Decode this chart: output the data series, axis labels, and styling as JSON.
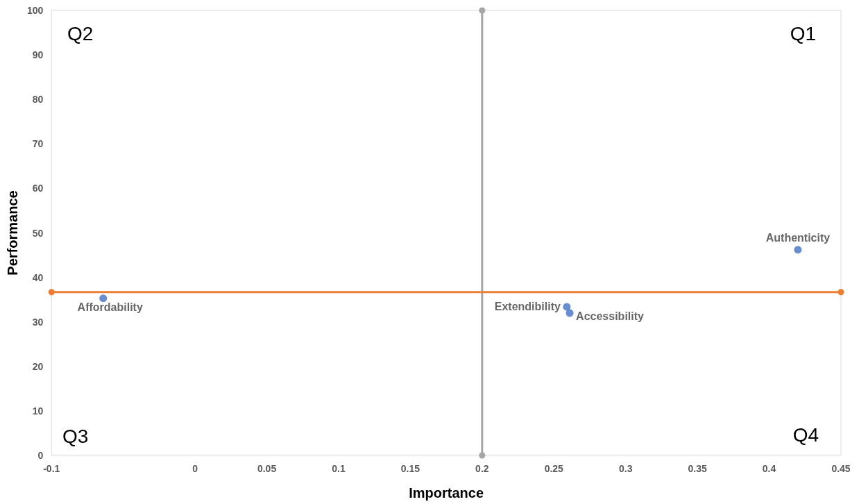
{
  "chart_data": {
    "type": "scatter",
    "xlabel": "Importance",
    "ylabel": "Performance",
    "x": [
      -0.064,
      0.259,
      0.261,
      0.42
    ],
    "series": [
      {
        "color": "#4472c4",
        "values": [
          35.3,
          33.4,
          32.0,
          46.2
        ]
      },
      {
        "type": "line",
        "color": "#a5a5a5",
        "x": [
          0.2,
          0.2
        ],
        "values": [
          0,
          100
        ]
      },
      {
        "type": "line",
        "color": "#ed7d31",
        "x": [
          -0.1,
          0.45
        ],
        "values": [
          36.7,
          36.7
        ]
      }
    ],
    "xlim": [
      -0.1,
      0.45
    ],
    "xticks": [
      -0.1,
      0,
      0.05,
      0.1,
      0.15,
      0.2,
      0.25,
      0.3,
      0.35,
      0.4,
      0.45
    ],
    "ylim": [
      0,
      100
    ],
    "yticks": [
      0,
      10,
      20,
      30,
      40,
      50,
      60,
      70,
      80,
      90,
      100
    ],
    "grid": false,
    "marker": "circle",
    "annotations": [
      "Q2",
      "Q1",
      "Q3",
      "Q4",
      {
        "text": "Affordability",
        "x": -0.064,
        "y": 35.3
      },
      {
        "text": "Extendibility",
        "x": 0.259,
        "y": 33.4
      },
      {
        "text": "Accessibility",
        "x": 0.261,
        "y": 32.0
      },
      {
        "text": "Authenticity",
        "x": 0.42,
        "y": 46.2
      }
    ]
  }
}
